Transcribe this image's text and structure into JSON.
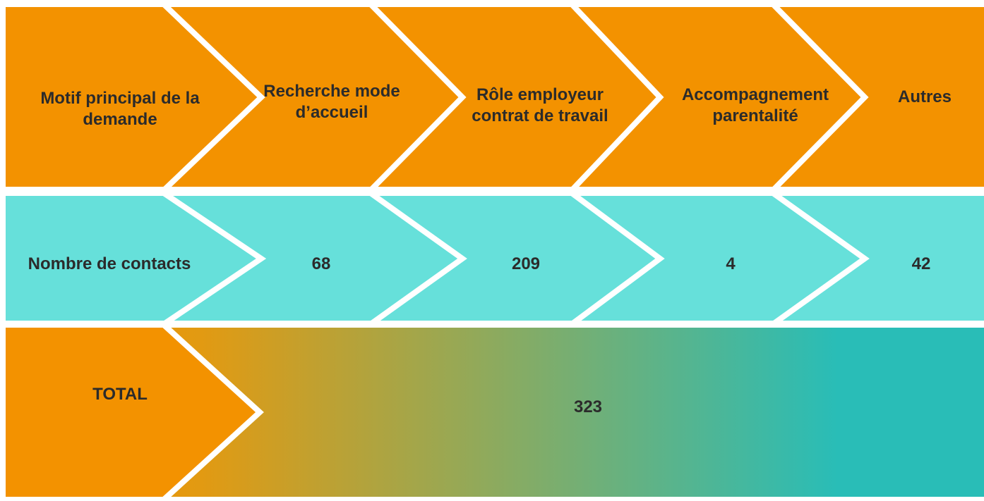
{
  "header": {
    "label": "Motif principal de la demande",
    "categories": [
      "Recherche mode d’accueil",
      "Rôle employeur contrat de travail",
      "Accompagnement parentalité",
      "Autres"
    ]
  },
  "contacts": {
    "label": "Nombre de contacts",
    "values": [
      68,
      209,
      4,
      42
    ]
  },
  "total": {
    "label": "TOTAL",
    "value": 323
  }
}
